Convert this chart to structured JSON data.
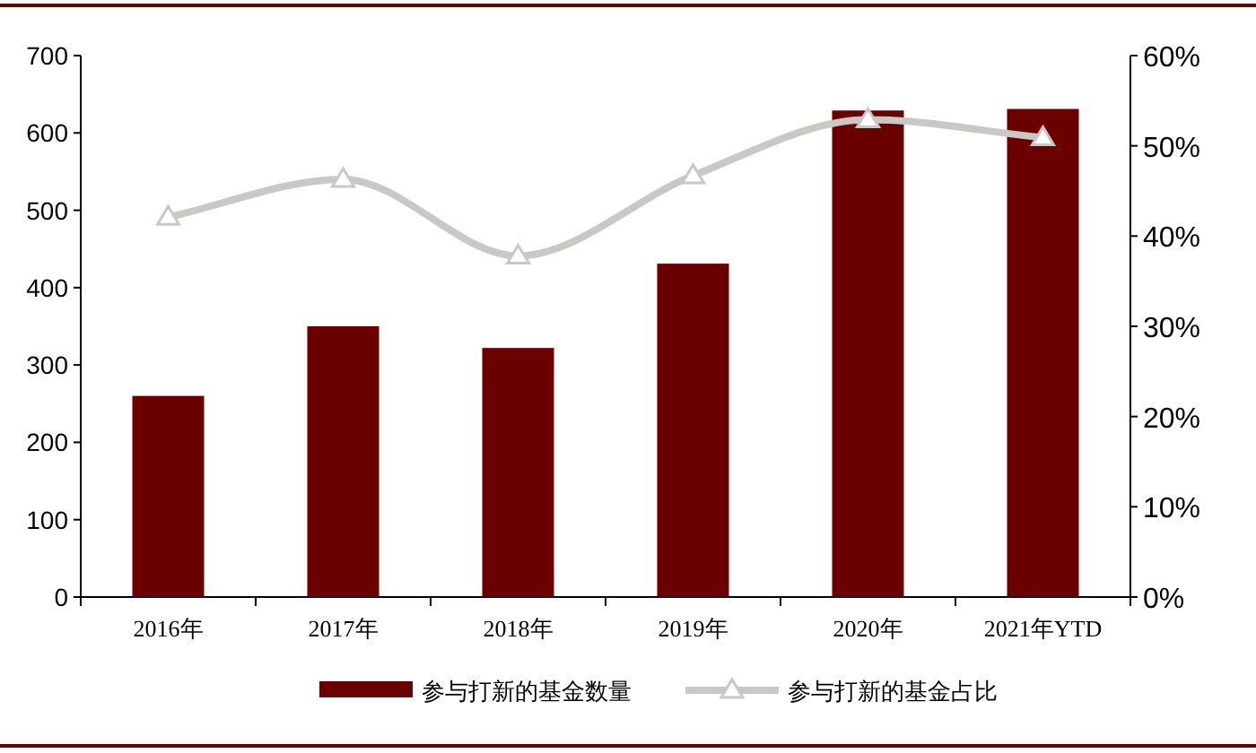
{
  "chart_data": {
    "type": "bar",
    "categories": [
      "2016年",
      "2017年",
      "2018年",
      "2019年",
      "2020年",
      "2021年YTD"
    ],
    "series": [
      {
        "name": "参与打新的基金数量",
        "color": "#6b0000",
        "values": [
          260,
          350,
          322,
          431,
          629,
          631
        ]
      },
      {
        "name": "参与打新的基金占比",
        "type": "line",
        "axis": "y2",
        "color": "#c8c8c4",
        "marker": "triangle",
        "values": [
          42.1,
          46.3,
          37.8,
          46.7,
          52.9,
          50.9
        ]
      }
    ],
    "ylim": [
      0,
      700
    ],
    "yticks": [
      0,
      100,
      200,
      300,
      400,
      500,
      600,
      700
    ],
    "y2lim": [
      0,
      60
    ],
    "y2ticks": [
      {
        "value": 0,
        "label": "0%"
      },
      {
        "value": 10,
        "label": "10%"
      },
      {
        "value": 20,
        "label": "20%"
      },
      {
        "value": 30,
        "label": "30%"
      },
      {
        "value": 40,
        "label": "40%"
      },
      {
        "value": 50,
        "label": "50%"
      },
      {
        "value": 60,
        "label": "60%"
      }
    ],
    "grid": false,
    "legend": "bottom"
  }
}
